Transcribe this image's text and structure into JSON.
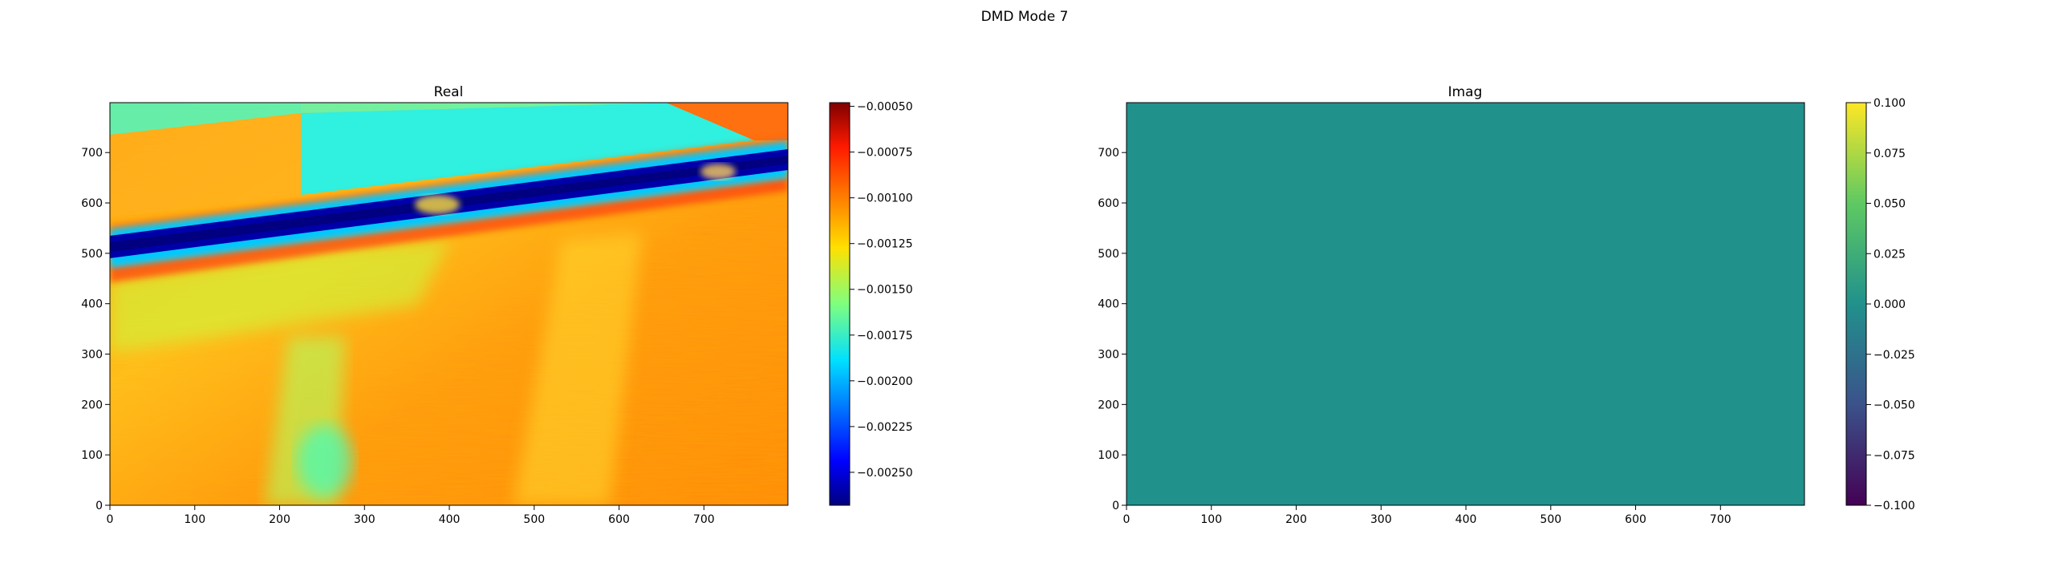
{
  "figure": {
    "title": "DMD Mode 7"
  },
  "chart_data": [
    {
      "type": "heatmap",
      "title": "Real",
      "colormap": "jet",
      "xlim": [
        0,
        799
      ],
      "ylim": [
        0,
        799
      ],
      "xticks": [
        0,
        100,
        200,
        300,
        400,
        500,
        600,
        700
      ],
      "yticks": [
        0,
        100,
        200,
        300,
        400,
        500,
        600,
        700
      ],
      "xtick_labels": [
        "0",
        "100",
        "200",
        "300",
        "400",
        "500",
        "600",
        "700"
      ],
      "ytick_labels": [
        "0",
        "100",
        "200",
        "300",
        "400",
        "500",
        "600",
        "700"
      ],
      "colorbar": {
        "range": [
          -0.00268,
          -0.00048
        ],
        "ticks": [
          -0.0005,
          -0.00075,
          -0.001,
          -0.00125,
          -0.0015,
          -0.00175,
          -0.002,
          -0.00225,
          -0.0025
        ],
        "tick_labels": [
          "−0.00050",
          "−0.00075",
          "−0.00100",
          "−0.00125",
          "−0.00150",
          "−0.00175",
          "−0.00200",
          "−0.00225",
          "−0.00250"
        ]
      },
      "image_description": "Mostly orange/yellow field (about −0.0010 to −0.0013); a dark-blue diagonal band (about −0.0026) rising from y≈510 at x=0 to y≈690 at x=799; cyan rectangular region (about −0.0017) in the upper area x≈225–799, y≈620–799"
    },
    {
      "type": "heatmap",
      "title": "Imag",
      "colormap": "viridis",
      "xlim": [
        0,
        799
      ],
      "ylim": [
        0,
        799
      ],
      "xticks": [
        0,
        100,
        200,
        300,
        400,
        500,
        600,
        700
      ],
      "yticks": [
        0,
        100,
        200,
        300,
        400,
        500,
        600,
        700
      ],
      "xtick_labels": [
        "0",
        "100",
        "200",
        "300",
        "400",
        "500",
        "600",
        "700"
      ],
      "ytick_labels": [
        "0",
        "100",
        "200",
        "300",
        "400",
        "500",
        "600",
        "700"
      ],
      "uniform_value": 0.0,
      "uniform_color": "#21918c",
      "colorbar": {
        "range": [
          -0.1,
          0.1
        ],
        "ticks": [
          0.1,
          0.075,
          0.05,
          0.025,
          0.0,
          -0.025,
          -0.05,
          -0.075,
          -0.1
        ],
        "tick_labels": [
          "0.100",
          "0.075",
          "0.050",
          "0.025",
          "0.000",
          "−0.025",
          "−0.050",
          "−0.075",
          "−0.100"
        ]
      }
    }
  ]
}
